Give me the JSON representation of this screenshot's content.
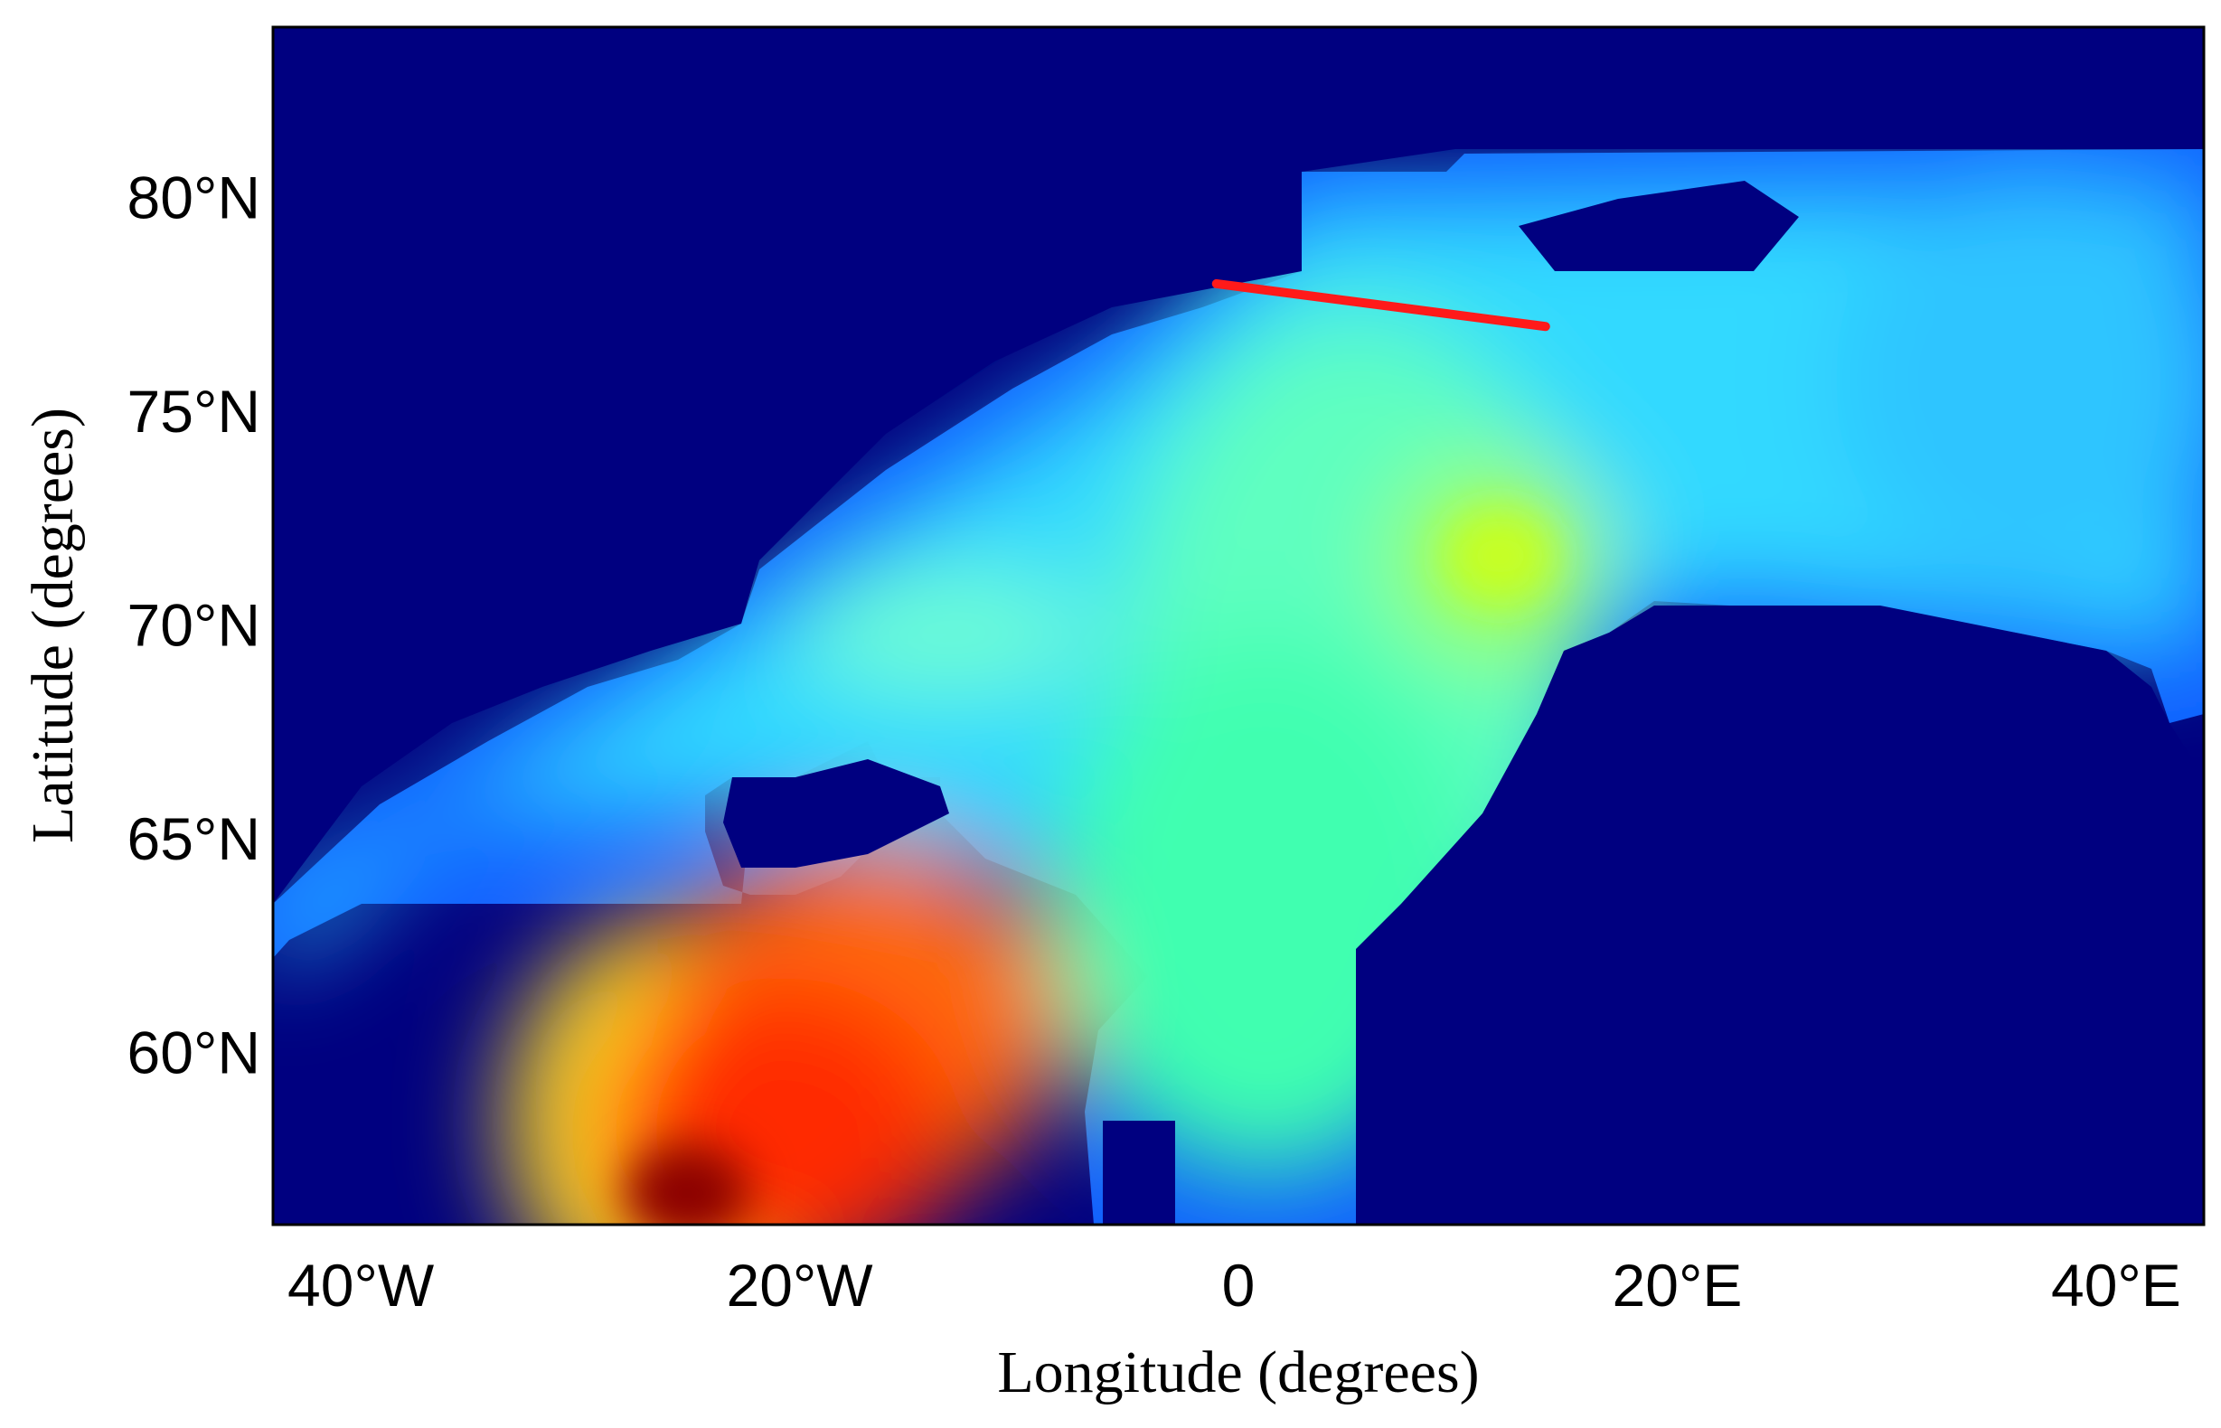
{
  "chart_data": {
    "type": "heatmap",
    "title": "",
    "xlabel": "Longitude (degrees)",
    "ylabel": "Latitude (degrees)",
    "xlim": [
      -44,
      44
    ],
    "ylim": [
      56,
      84
    ],
    "x_ticks": [
      {
        "value": -40,
        "label": "40°W"
      },
      {
        "value": -20,
        "label": "20°W"
      },
      {
        "value": 0,
        "label": "0"
      },
      {
        "value": 20,
        "label": "20°E"
      },
      {
        "value": 40,
        "label": "40°E"
      }
    ],
    "y_ticks": [
      {
        "value": 60,
        "label": "60°N"
      },
      {
        "value": 65,
        "label": "65°N"
      },
      {
        "value": 70,
        "label": "70°N"
      },
      {
        "value": 75,
        "label": "75°N"
      },
      {
        "value": 80,
        "label": "80°N"
      }
    ],
    "grid": false,
    "colormap": "jet",
    "land_color": "#000080",
    "section_line": {
      "color": "#ff1a1a",
      "points": [
        {
          "lon": -1,
          "lat": 78
        },
        {
          "lon": 14,
          "lat": 77
        }
      ]
    }
  }
}
